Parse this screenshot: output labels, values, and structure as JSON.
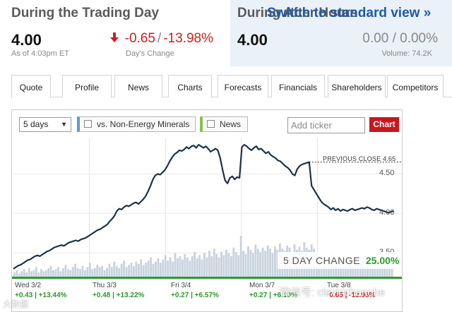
{
  "quote": {
    "title": "During the Trading Day",
    "price": "4.00",
    "as_of": "As of 4:03pm ET",
    "change_arrow": "down-arrow-icon",
    "change": "-0.65",
    "change_sep": "/",
    "change_pct": "-13.98%",
    "change_label": "Day's Change"
  },
  "after_hours": {
    "title": "During After Hours",
    "switch_link": "Switch to standard view »",
    "price": "4.00",
    "change": "0.00",
    "change_sep": "/",
    "change_pct": "0.00%",
    "volume": "Volume: 74.2K"
  },
  "tabs": [
    {
      "label": "Quote",
      "active": true
    },
    {
      "label": "Profile"
    },
    {
      "label": "News"
    },
    {
      "label": "Charts"
    },
    {
      "label": "Forecasts"
    },
    {
      "label": "Financials"
    },
    {
      "label": "Shareholders"
    },
    {
      "label": "Competitors"
    }
  ],
  "controls": {
    "period": "5 days",
    "compare_label": "vs. Non-Energy Minerals",
    "news_label": "News",
    "ticker_placeholder": "Add ticker",
    "chart_button": "Chart"
  },
  "chart_data": {
    "type": "line",
    "ylim": [
      3.2,
      4.95
    ],
    "yticks": [
      "4.50",
      "4.00",
      "3.50"
    ],
    "previous_close": 4.65,
    "previous_close_label": "PREVIOUS CLOSE 4.65",
    "five_day_label": "5 DAY CHANGE",
    "five_day_value": "25.00%",
    "series": [
      {
        "values": [
          3.3,
          3.32,
          3.34,
          3.35,
          3.37,
          3.39,
          3.41,
          3.42,
          3.44,
          3.46,
          3.47,
          3.46,
          3.48,
          3.5,
          3.52,
          3.53,
          3.55,
          3.57,
          3.58,
          3.59,
          3.6,
          3.59,
          3.61,
          3.63,
          3.64,
          3.65,
          3.66,
          3.65,
          3.67,
          3.68,
          3.69,
          3.71,
          3.73,
          3.75,
          3.77,
          3.79,
          3.8,
          3.82,
          3.84,
          3.86,
          3.9,
          3.93,
          3.97,
          4.03,
          4.06,
          4.05,
          4.08,
          4.1,
          4.09,
          4.11,
          4.13,
          4.14,
          4.12,
          4.15,
          4.18,
          4.22,
          4.28,
          4.35,
          4.43,
          4.48,
          4.5,
          4.49,
          4.52,
          4.55,
          4.6,
          4.66,
          4.71,
          4.75,
          4.77,
          4.8,
          4.79,
          4.81,
          4.84,
          4.82,
          4.85,
          4.86,
          4.83,
          4.87,
          4.85,
          4.83,
          4.85,
          4.82,
          4.78,
          4.8,
          4.82,
          4.8,
          4.7,
          4.55,
          4.42,
          4.38,
          4.45,
          4.47,
          4.43,
          4.46,
          4.45,
          4.84,
          4.87,
          4.85,
          4.82,
          4.8,
          4.83,
          4.85,
          4.81,
          4.82,
          4.79,
          4.76,
          4.78,
          4.74,
          4.72,
          4.7,
          4.67,
          4.66,
          4.63,
          4.6,
          4.58,
          4.55,
          4.5,
          4.48,
          4.56,
          4.6,
          4.62,
          4.63,
          4.64,
          4.65,
          4.35,
          4.3,
          4.25,
          4.2,
          4.15,
          4.12,
          4.1,
          4.08,
          4.05,
          4.07,
          4.04,
          4.06,
          4.03,
          4.05,
          4.04,
          4.03,
          4.05,
          4.06,
          4.04,
          4.05,
          4.06,
          4.07,
          4.06,
          4.08,
          4.07,
          4.05,
          4.04,
          4.06,
          4.05,
          4.04,
          4.03,
          4.02,
          4.01,
          4.02,
          4.03
        ]
      }
    ],
    "volume": [
      4,
      6,
      3,
      5,
      7,
      4,
      8,
      5,
      6,
      9,
      4,
      7,
      5,
      6,
      8,
      10,
      6,
      7,
      9,
      5,
      8,
      11,
      7,
      6,
      9,
      12,
      8,
      7,
      10,
      6,
      9,
      13,
      7,
      8,
      11,
      9,
      10,
      6,
      8,
      12,
      9,
      14,
      10,
      8,
      12,
      15,
      9,
      11,
      13,
      10,
      14,
      12,
      16,
      11,
      13,
      15,
      18,
      12,
      14,
      17,
      13,
      16,
      20,
      15,
      18,
      14,
      22,
      17,
      19,
      16,
      21,
      18,
      15,
      19,
      23,
      17,
      20,
      16,
      22,
      18,
      24,
      19,
      26,
      21,
      18,
      23,
      20,
      25,
      22,
      19,
      27,
      23,
      20,
      38,
      24,
      21,
      28,
      25,
      22,
      30,
      26,
      23,
      27,
      24,
      29,
      26,
      22,
      28,
      25,
      31,
      26,
      24,
      29,
      27,
      23,
      30,
      25,
      28,
      24,
      32,
      27,
      25,
      30,
      26,
      22,
      19,
      17,
      20,
      18,
      16,
      21,
      18,
      15,
      19,
      17,
      14,
      18,
      16,
      13,
      17,
      15,
      12,
      16,
      14,
      11,
      15,
      13,
      12,
      14,
      12,
      10,
      13,
      11,
      12,
      10,
      11
    ],
    "days": [
      {
        "date": "Wed 3/2",
        "change": "+0.43",
        "pct": "+13.44%",
        "dir": "pos"
      },
      {
        "date": "Thu 3/3",
        "change": "+0.48",
        "pct": "+13.22%",
        "dir": "pos"
      },
      {
        "date": "Fri 3/4",
        "change": "+0.27",
        "pct": "+6.57%",
        "dir": "pos"
      },
      {
        "date": "Mon 3/7",
        "change": "+0.27",
        "pct": "+6.10%",
        "dir": "pos"
      },
      {
        "date": "Tue 3/8",
        "change": "-0.65",
        "pct": "-13.98%",
        "dir": "neg"
      }
    ]
  },
  "watermarks": {
    "left": "大数据",
    "right": "微信号: clevinchenghe"
  },
  "colors": {
    "line": "#1e3346",
    "volume": "#c9d3de",
    "positive": "#2a9a2a",
    "negative": "#cc1f1f",
    "accent": "#c8161d",
    "link": "#1f5aa6"
  }
}
